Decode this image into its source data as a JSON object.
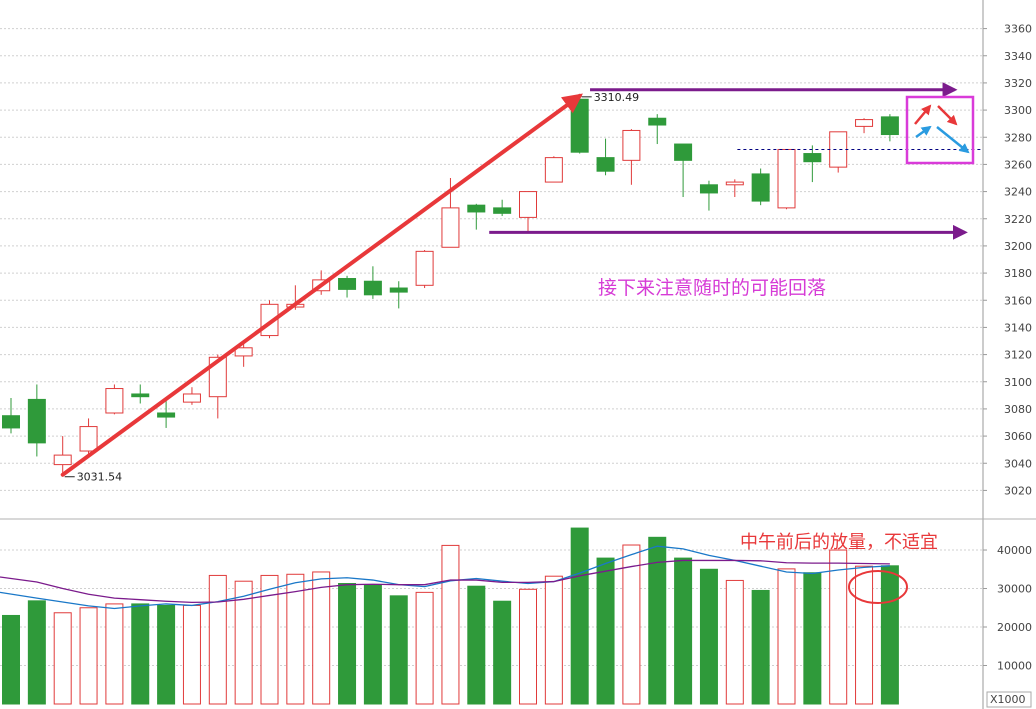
{
  "chart_data": [
    {
      "type": "candlestick",
      "panel": "price",
      "ylim": [
        3010,
        3370
      ],
      "yticks": [
        3020,
        3040,
        3060,
        3080,
        3100,
        3120,
        3140,
        3160,
        3180,
        3200,
        3220,
        3240,
        3260,
        3280,
        3300,
        3320,
        3340,
        3360
      ],
      "grid": true,
      "colors": {
        "up": "#e03a3a",
        "down": "#2f9a3a"
      },
      "candles": [
        {
          "o": 3075,
          "h": 3088,
          "l": 3062,
          "c": 3066
        },
        {
          "o": 3087,
          "h": 3098,
          "l": 3045,
          "c": 3055
        },
        {
          "o": 3039,
          "h": 3060,
          "l": 3031.54,
          "c": 3046
        },
        {
          "o": 3049,
          "h": 3073,
          "l": 3047,
          "c": 3067
        },
        {
          "o": 3077,
          "h": 3098,
          "l": 3076,
          "c": 3095
        },
        {
          "o": 3091,
          "h": 3098,
          "l": 3084,
          "c": 3089
        },
        {
          "o": 3077,
          "h": 3086,
          "l": 3066,
          "c": 3074
        },
        {
          "o": 3085,
          "h": 3096,
          "l": 3083,
          "c": 3091
        },
        {
          "o": 3089,
          "h": 3120,
          "l": 3073,
          "c": 3118
        },
        {
          "o": 3119,
          "h": 3128,
          "l": 3111,
          "c": 3125
        },
        {
          "o": 3134,
          "h": 3160,
          "l": 3132,
          "c": 3157
        },
        {
          "o": 3155,
          "h": 3171,
          "l": 3153,
          "c": 3157
        },
        {
          "o": 3167,
          "h": 3182,
          "l": 3164,
          "c": 3175
        },
        {
          "o": 3176,
          "h": 3178,
          "l": 3162,
          "c": 3168
        },
        {
          "o": 3174,
          "h": 3185,
          "l": 3161,
          "c": 3164
        },
        {
          "o": 3169,
          "h": 3174,
          "l": 3154,
          "c": 3166
        },
        {
          "o": 3171,
          "h": 3197,
          "l": 3169,
          "c": 3196
        },
        {
          "o": 3199,
          "h": 3250,
          "l": 3199,
          "c": 3228
        },
        {
          "o": 3230,
          "h": 3231,
          "l": 3212,
          "c": 3225
        },
        {
          "o": 3228,
          "h": 3234,
          "l": 3222,
          "c": 3224
        },
        {
          "o": 3221,
          "h": 3240,
          "l": 3211,
          "c": 3240
        },
        {
          "o": 3247,
          "h": 3266,
          "l": 3247,
          "c": 3265
        },
        {
          "o": 3308,
          "h": 3310.49,
          "l": 3268,
          "c": 3269
        },
        {
          "o": 3265,
          "h": 3279,
          "l": 3252,
          "c": 3255
        },
        {
          "o": 3263,
          "h": 3286,
          "l": 3245,
          "c": 3285
        },
        {
          "o": 3294,
          "h": 3297,
          "l": 3275,
          "c": 3289
        },
        {
          "o": 3275,
          "h": 3275,
          "l": 3236,
          "c": 3263
        },
        {
          "o": 3245,
          "h": 3248,
          "l": 3226,
          "c": 3239
        },
        {
          "o": 3245,
          "h": 3249,
          "l": 3236,
          "c": 3247
        },
        {
          "o": 3253,
          "h": 3257,
          "l": 3230,
          "c": 3233
        },
        {
          "o": 3228,
          "h": 3271,
          "l": 3227,
          "c": 3271
        },
        {
          "o": 3268,
          "h": 3274,
          "l": 3247,
          "c": 3262
        },
        {
          "o": 3258,
          "h": 3284,
          "l": 3254,
          "c": 3284
        },
        {
          "o": 3288,
          "h": 3294,
          "l": 3283,
          "c": 3293
        },
        {
          "o": 3295,
          "h": 3297,
          "l": 3277,
          "c": 3282
        }
      ],
      "annotations": {
        "low_label": "3031.54",
        "high_label": "3310.49",
        "note": "接下来注意随时的可能回落",
        "trend_arrow": {
          "from": [
            2,
            3031.54
          ],
          "to": [
            22,
            3310.49
          ],
          "color": "#e8383a"
        },
        "resistance_arrow": {
          "from": [
            22.4,
            3315
          ],
          "to": [
            36.5,
            3315
          ],
          "color": "#7b1b8c"
        },
        "support_arrow": {
          "from": [
            18.5,
            3210
          ],
          "to": [
            36.9,
            3210
          ],
          "color": "#7b1b8c"
        },
        "dashed_level": {
          "from": [
            28.1,
            3271
          ],
          "to": [
            37.5,
            3271
          ],
          "color": "#000080"
        },
        "scenario_box_color": "#d93bd9"
      }
    },
    {
      "type": "bar",
      "panel": "volume",
      "ylabel_unit": "X1000",
      "ylim": [
        0,
        46500
      ],
      "yticks": [
        10000,
        20000,
        30000,
        40000
      ],
      "values": [
        23000,
        26800,
        23700,
        25000,
        26000,
        26000,
        25600,
        25600,
        33400,
        31900,
        33400,
        33700,
        34300,
        31300,
        31000,
        28100,
        29000,
        41200,
        30600,
        26700,
        29800,
        33200,
        45700,
        37900,
        41300,
        43300,
        37900,
        35000,
        32100,
        29500,
        35100,
        34100,
        40000,
        35800,
        35900
      ],
      "ma_series": [
        {
          "name": "",
          "color": "#1a78c8",
          "values": [
            29000,
            27500,
            26500,
            25500,
            24800,
            25500,
            26000,
            25600,
            26600,
            28000,
            29800,
            31500,
            32500,
            32800,
            32200,
            31000,
            30500,
            32000,
            32600,
            31900,
            31300,
            31800,
            34000,
            36500,
            38800,
            41000,
            40300,
            38600,
            37300,
            35800,
            34300,
            33900,
            34800,
            35500,
            35900
          ]
        },
        {
          "name": "",
          "color": "#7b1b8c",
          "values": [
            33000,
            31700,
            30000,
            28500,
            27500,
            27100,
            26700,
            26400,
            26500,
            27200,
            28200,
            29200,
            30300,
            31000,
            31100,
            31000,
            31000,
            32200,
            32200,
            31600,
            31600,
            31800,
            33300,
            34500,
            35700,
            36800,
            37300,
            37300,
            37300,
            37200,
            36700,
            36600,
            36600,
            36500,
            36400
          ]
        }
      ],
      "annotations": {
        "note": "中午前后的放量，不适宜",
        "highlight_ellipse_color": "#e8383a"
      }
    }
  ]
}
